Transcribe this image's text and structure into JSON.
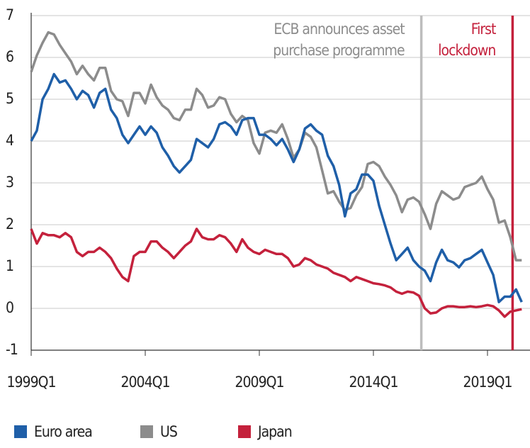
{
  "chart_data": {
    "type": "line",
    "categories": [
      "1999Q1",
      null,
      null,
      null,
      null,
      null,
      null,
      null,
      null,
      null,
      null,
      null,
      null,
      null,
      null,
      null,
      null,
      null,
      null,
      null,
      "2004Q1",
      null,
      null,
      null,
      null,
      null,
      null,
      null,
      null,
      null,
      null,
      null,
      null,
      null,
      null,
      null,
      null,
      null,
      null,
      null,
      "2009Q1",
      null,
      null,
      null,
      null,
      null,
      null,
      null,
      null,
      null,
      null,
      null,
      null,
      null,
      null,
      null,
      null,
      null,
      null,
      null,
      "2014Q1",
      null,
      null,
      null,
      null,
      null,
      null,
      null,
      null,
      null,
      null,
      null,
      null,
      null,
      null,
      null,
      null,
      null,
      null,
      null,
      "2019Q1",
      null,
      null,
      null,
      null,
      null,
      null
    ],
    "series": [
      {
        "name": "Euro area",
        "color": "#1f5fa8",
        "values": [
          4.0,
          4.25,
          5.0,
          5.25,
          5.6,
          5.4,
          5.45,
          5.25,
          5.0,
          5.2,
          5.1,
          4.8,
          5.15,
          5.25,
          4.75,
          4.55,
          4.15,
          3.95,
          4.15,
          4.35,
          4.15,
          4.35,
          4.2,
          3.85,
          3.65,
          3.4,
          3.25,
          3.4,
          3.55,
          4.05,
          3.95,
          3.85,
          4.05,
          4.4,
          4.45,
          4.35,
          4.15,
          4.5,
          4.55,
          4.55,
          4.15,
          4.15,
          4.05,
          3.9,
          4.05,
          3.8,
          3.5,
          3.8,
          4.3,
          4.4,
          4.25,
          4.15,
          3.65,
          3.4,
          2.95,
          2.2,
          2.75,
          2.85,
          3.2,
          3.2,
          3.05,
          2.45,
          2.0,
          1.55,
          1.15,
          1.3,
          1.45,
          1.15,
          1.0,
          0.9,
          0.65,
          1.1,
          1.4,
          1.15,
          1.1,
          0.98,
          1.15,
          1.2,
          1.3,
          1.4,
          1.1,
          0.8,
          0.15,
          0.28,
          0.28,
          0.45,
          0.15
        ]
      },
      {
        "name": "US",
        "color": "#8c8c8c",
        "values": [
          5.65,
          6.05,
          6.35,
          6.6,
          6.55,
          6.3,
          6.1,
          5.9,
          5.6,
          5.8,
          5.6,
          5.45,
          5.75,
          5.75,
          5.2,
          5.0,
          4.95,
          4.6,
          5.15,
          5.15,
          4.9,
          5.35,
          5.05,
          4.85,
          4.75,
          4.55,
          4.5,
          4.75,
          4.75,
          5.25,
          5.1,
          4.8,
          4.85,
          5.05,
          5.0,
          4.65,
          4.45,
          4.6,
          4.5,
          3.95,
          3.7,
          4.2,
          4.25,
          4.2,
          4.4,
          4.05,
          3.6,
          3.8,
          4.2,
          4.1,
          3.85,
          3.3,
          2.75,
          2.8,
          2.55,
          2.35,
          2.4,
          2.7,
          2.9,
          3.45,
          3.5,
          3.4,
          3.15,
          2.95,
          2.7,
          2.3,
          2.6,
          2.65,
          2.55,
          2.25,
          1.9,
          2.5,
          2.8,
          2.7,
          2.6,
          2.65,
          2.9,
          2.95,
          3.0,
          3.15,
          2.85,
          2.6,
          2.05,
          2.1,
          1.7,
          1.15,
          1.15
        ]
      },
      {
        "name": "Japan",
        "color": "#c4213c",
        "values": [
          1.9,
          1.55,
          1.8,
          1.75,
          1.75,
          1.7,
          1.8,
          1.7,
          1.35,
          1.25,
          1.35,
          1.35,
          1.45,
          1.35,
          1.2,
          0.95,
          0.75,
          0.65,
          1.25,
          1.35,
          1.35,
          1.6,
          1.6,
          1.45,
          1.35,
          1.2,
          1.35,
          1.5,
          1.6,
          1.9,
          1.7,
          1.65,
          1.65,
          1.75,
          1.7,
          1.55,
          1.35,
          1.65,
          1.45,
          1.35,
          1.3,
          1.4,
          1.35,
          1.3,
          1.3,
          1.2,
          1.0,
          1.05,
          1.2,
          1.15,
          1.05,
          1.0,
          0.95,
          0.85,
          0.8,
          0.75,
          0.65,
          0.75,
          0.7,
          0.65,
          0.6,
          0.58,
          0.55,
          0.5,
          0.4,
          0.35,
          0.4,
          0.38,
          0.3,
          0.0,
          -0.12,
          -0.1,
          0.0,
          0.05,
          0.05,
          0.03,
          0.03,
          0.05,
          0.03,
          0.05,
          0.08,
          0.05,
          -0.05,
          -0.2,
          -0.08,
          -0.05,
          -0.02
        ]
      }
    ],
    "annotations": [
      {
        "lines": [
          "ECB announces asset",
          "purchase programme"
        ],
        "x": 68.4,
        "color": "#bdbdbd",
        "text_color": "#8c8c8c"
      },
      {
        "lines": [
          "First",
          "lockdown"
        ],
        "x": 84.4,
        "color": "#c4213c",
        "text_color": "#c4213c"
      }
    ],
    "ylim": [
      -1,
      7
    ],
    "yticks": [
      -1,
      0,
      1,
      2,
      3,
      4,
      5,
      6,
      7
    ],
    "grid": true,
    "legend": "bottom"
  }
}
